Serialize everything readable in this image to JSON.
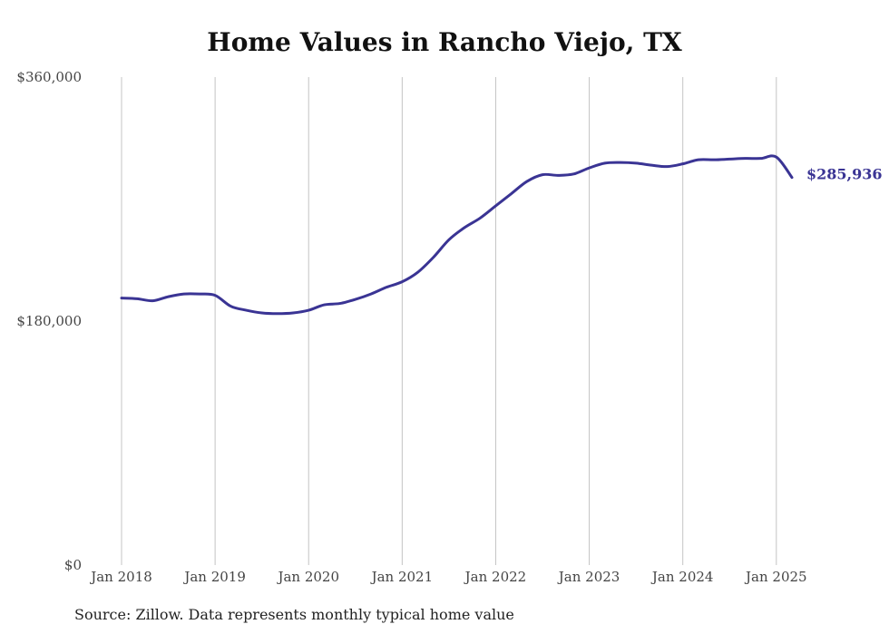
{
  "chart_data": {
    "type": "line",
    "title": "Home Values in Rancho Viejo, TX",
    "source": "Source: Zillow. Data represents monthly typical home value",
    "xlabel": "",
    "ylabel": "",
    "ylim": [
      0,
      360000
    ],
    "y_ticks": [
      0,
      180000,
      360000
    ],
    "y_tick_labels": [
      "$0",
      "$180,000",
      "$360,000"
    ],
    "x_ticks": [
      "2018-01",
      "2019-01",
      "2020-01",
      "2021-01",
      "2022-01",
      "2023-01",
      "2024-01",
      "2025-01"
    ],
    "x_tick_labels": [
      "Jan 2018",
      "Jan 2019",
      "Jan 2020",
      "Jan 2021",
      "Jan 2022",
      "Jan 2023",
      "Jan 2024",
      "Jan 2025"
    ],
    "xlim": [
      "2018-01",
      "2025-03"
    ],
    "grid": "vertical",
    "line_color": "#3a3494",
    "end_label": "$285,936",
    "series": [
      {
        "x": [
          "2018-01",
          "2018-03",
          "2018-05",
          "2018-07",
          "2018-09",
          "2018-11",
          "2019-01",
          "2019-03",
          "2019-05",
          "2019-07",
          "2019-09",
          "2019-11",
          "2020-01",
          "2020-03",
          "2020-05",
          "2020-07",
          "2020-09",
          "2020-11",
          "2021-01",
          "2021-03",
          "2021-05",
          "2021-07",
          "2021-09",
          "2021-11",
          "2022-01",
          "2022-03",
          "2022-05",
          "2022-07",
          "2022-09",
          "2022-11",
          "2023-01",
          "2023-03",
          "2023-05",
          "2023-07",
          "2023-09",
          "2023-11",
          "2024-01",
          "2024-03",
          "2024-05",
          "2024-07",
          "2024-09",
          "2024-11",
          "2025-01",
          "2025-03"
        ],
        "values": [
          197000,
          196500,
          195000,
          198000,
          200000,
          200000,
          199000,
          191000,
          188000,
          186000,
          185500,
          186000,
          188000,
          192000,
          193000,
          196000,
          200000,
          205000,
          209000,
          216000,
          227000,
          240000,
          249000,
          256000,
          265000,
          274000,
          283000,
          288000,
          287500,
          288500,
          293000,
          296500,
          297000,
          296500,
          295000,
          294000,
          296000,
          299000,
          299000,
          299500,
          300000,
          300000,
          301000,
          285936
        ]
      }
    ]
  }
}
